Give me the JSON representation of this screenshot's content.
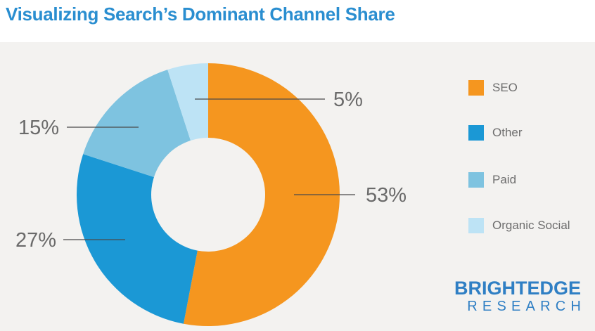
{
  "title": "Visualizing Search’s Dominant Channel Share",
  "chart_data": {
    "type": "pie",
    "title": "Visualizing Search’s Dominant Channel Share",
    "categories": [
      "SEO",
      "Other",
      "Paid",
      "Organic Social"
    ],
    "values": [
      53,
      27,
      15,
      5
    ],
    "labels": [
      "53%",
      "27%",
      "15%",
      "5%"
    ],
    "colors": [
      "#f5961f",
      "#1b98d5",
      "#7ec3e0",
      "#bde3f5"
    ],
    "legend_position": "right"
  },
  "legend": {
    "items": [
      {
        "label": "SEO",
        "color": "#f5961f"
      },
      {
        "label": "Other",
        "color": "#1b98d5"
      },
      {
        "label": "Paid",
        "color": "#7ec3e0"
      },
      {
        "label": "Organic Social",
        "color": "#bde3f5"
      }
    ]
  },
  "brand": {
    "line1": "BRIGHTEDGE",
    "line2": "RESEARCH",
    "color": "#2f7fc4"
  }
}
